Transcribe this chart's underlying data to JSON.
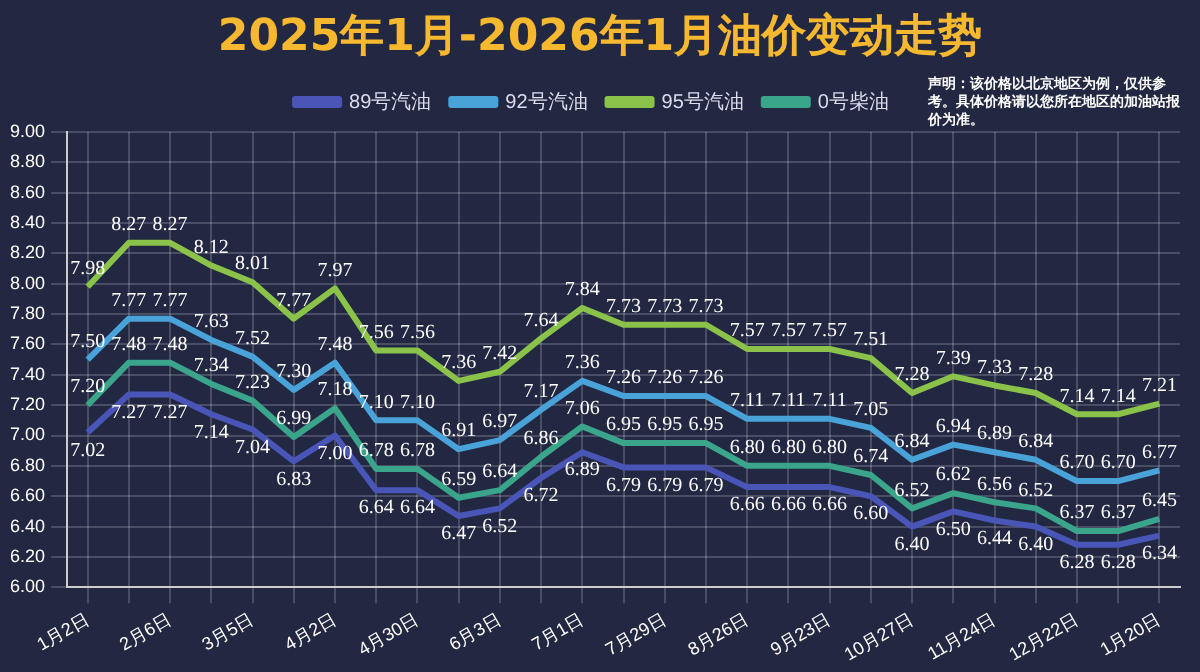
{
  "chart_data": {
    "type": "line",
    "title": "2025年1月-2026年1月油价变动走势",
    "annotations": [
      "声明：该价格以北京地区为例，仅供参考。具体价格请以您所在地区的加油站报价为准。"
    ],
    "categories": [
      "1月2日",
      null,
      "2月6日",
      null,
      "3月5日",
      null,
      "4月2日",
      null,
      "4月30日",
      null,
      "6月3日",
      null,
      "7月1日",
      null,
      "7月29日",
      null,
      "8月26日",
      null,
      "9月23日",
      null,
      "10月27日",
      null,
      "11月24日",
      null,
      "12月22日",
      null,
      "1月20日"
    ],
    "series": [
      {
        "name": "89号汽油",
        "color": "#4a55b8",
        "values": [
          7.02,
          7.27,
          7.27,
          7.14,
          7.04,
          6.83,
          7.0,
          6.64,
          6.64,
          6.47,
          6.52,
          6.72,
          6.89,
          6.79,
          6.79,
          6.79,
          6.66,
          6.66,
          6.66,
          6.6,
          6.4,
          6.5,
          6.44,
          6.4,
          6.28,
          6.28,
          6.34
        ],
        "value_labels": [
          "7.02",
          "7.27",
          "7.27",
          "7.14",
          "7.04",
          "6.83",
          "7.00",
          "6.64",
          "6.64",
          "6.47",
          "6.52",
          "6.72",
          "6.89",
          "6.79",
          "6.79",
          "6.79",
          "6.66",
          "6.66",
          "6.66",
          "6.60",
          "6.40",
          "6.50",
          "6.44",
          "6.40",
          "6.28",
          "6.28",
          "6.34"
        ]
      },
      {
        "name": "92号汽油",
        "color": "#4aa3d8",
        "values": [
          7.5,
          7.77,
          7.77,
          7.63,
          7.52,
          7.3,
          7.48,
          7.1,
          7.1,
          6.91,
          6.97,
          7.17,
          7.36,
          7.26,
          7.26,
          7.26,
          7.11,
          7.11,
          7.11,
          7.05,
          6.84,
          6.94,
          6.89,
          6.84,
          6.7,
          6.7,
          6.77
        ],
        "value_labels": [
          "7.50",
          "7.77",
          "7.77",
          "7.63",
          "7.52",
          "7.30",
          "7.48",
          "7.10",
          "7.10",
          "6.91",
          "6.97",
          "7.17",
          "7.36",
          "7.26",
          "7.26",
          "7.26",
          "7.11",
          "7.11",
          "7.11",
          "7.05",
          "6.84",
          "6.94",
          "6.89",
          "6.84",
          "6.70",
          "6.70",
          "6.77"
        ]
      },
      {
        "name": "95号汽油",
        "color": "#8ac24a",
        "values": [
          7.98,
          8.27,
          8.27,
          8.12,
          8.01,
          7.77,
          7.97,
          7.56,
          7.56,
          7.36,
          7.42,
          7.64,
          7.84,
          7.73,
          7.73,
          7.73,
          7.57,
          7.57,
          7.57,
          7.51,
          7.28,
          7.39,
          7.33,
          7.28,
          7.14,
          7.14,
          7.21
        ],
        "value_labels": [
          "7.98",
          "8.27",
          "8.27",
          "8.12",
          "8.01",
          "7.77",
          "7.97",
          "7.56",
          "7.56",
          "7.36",
          "7.42",
          "7.64",
          "7.84",
          "7.73",
          "7.73",
          "7.73",
          "7.57",
          "7.57",
          "7.57",
          "7.51",
          "7.28",
          "7.39",
          "7.33",
          "7.28",
          "7.14",
          "7.14",
          "7.21"
        ]
      },
      {
        "name": "0号柴油",
        "color": "#3aa58a",
        "values": [
          7.2,
          7.48,
          7.48,
          7.34,
          7.23,
          6.99,
          7.18,
          6.78,
          6.78,
          6.59,
          6.64,
          6.86,
          7.06,
          6.95,
          6.95,
          6.95,
          6.8,
          6.8,
          6.8,
          6.74,
          6.52,
          6.62,
          6.56,
          6.52,
          6.37,
          6.37,
          6.45
        ],
        "value_labels": [
          "7.20",
          "7.48",
          "7.48",
          "7.34",
          "7.23",
          "6.99",
          "7.18",
          "6.78",
          "6.78",
          "6.59",
          "6.64",
          "6.86",
          "7.06",
          "6.95",
          "6.95",
          "6.95",
          "6.80",
          "6.80",
          "6.80",
          "6.74",
          "6.52",
          "6.62",
          "6.56",
          "6.52",
          "6.37",
          "6.37",
          "6.45"
        ]
      }
    ],
    "ylim": [
      6,
      9
    ],
    "yticks": [
      {
        "value": 6,
        "label": "6.00"
      },
      {
        "value": 6.2,
        "label": "6.20"
      },
      {
        "value": 6.4,
        "label": "6.40"
      },
      {
        "value": 6.6,
        "label": "6.60"
      },
      {
        "value": 6.8,
        "label": "6.80"
      },
      {
        "value": 7,
        "label": "7.00"
      },
      {
        "value": 7.2,
        "label": "7.20"
      },
      {
        "value": 7.4,
        "label": "7.40"
      },
      {
        "value": 7.6,
        "label": "7.60"
      },
      {
        "value": 7.8,
        "label": "7.80"
      },
      {
        "value": 8,
        "label": "8.00"
      },
      {
        "value": 8.2,
        "label": "8.20"
      },
      {
        "value": 8.4,
        "label": "8.40"
      },
      {
        "value": 8.6,
        "label": "8.60"
      },
      {
        "value": 8.8,
        "label": "8.80"
      },
      {
        "value": 9,
        "label": "9.00"
      }
    ],
    "grid": true,
    "legend": "top",
    "marker": "none",
    "line_style": "solid"
  }
}
